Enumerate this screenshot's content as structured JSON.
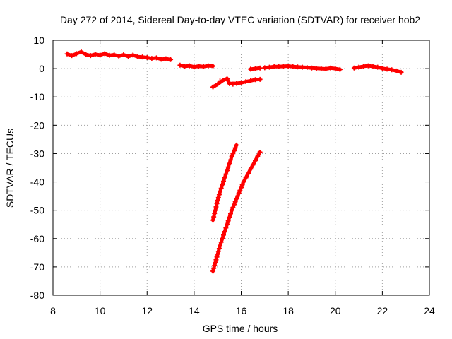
{
  "chart_data": {
    "type": "scatter",
    "title": "Day 272 of 2014, Sidereal Day-to-day VTEC variation (SDTVAR) for receiver hob2",
    "xlabel": "GPS time / hours",
    "ylabel": "SDTVAR / TECUs",
    "xlim": [
      8,
      24
    ],
    "ylim": [
      -80,
      10
    ],
    "xticks": [
      "8",
      "10",
      "12",
      "14",
      "16",
      "18",
      "20",
      "22",
      "24"
    ],
    "yticks": [
      "10",
      "0",
      "-10",
      "-20",
      "-30",
      "-40",
      "-50",
      "-60",
      "-70",
      "-80"
    ],
    "grid": true,
    "marker": "plus",
    "color": "#ff0000",
    "series": [
      {
        "points": [
          [
            8.6,
            5.2
          ],
          [
            8.8,
            4.6
          ],
          [
            9.0,
            5.3
          ],
          [
            9.2,
            5.9
          ],
          [
            9.4,
            5.0
          ],
          [
            9.6,
            4.6
          ],
          [
            9.8,
            5.1
          ],
          [
            10.0,
            4.8
          ],
          [
            10.2,
            5.3
          ],
          [
            10.4,
            4.7
          ],
          [
            10.6,
            4.9
          ],
          [
            10.8,
            4.4
          ],
          [
            11.0,
            4.9
          ],
          [
            11.2,
            4.3
          ],
          [
            11.4,
            4.8
          ],
          [
            11.6,
            4.2
          ],
          [
            11.8,
            4.1
          ],
          [
            12.0,
            3.9
          ],
          [
            12.2,
            3.6
          ],
          [
            12.4,
            3.8
          ],
          [
            12.6,
            3.3
          ],
          [
            12.8,
            3.5
          ],
          [
            13.0,
            3.2
          ]
        ]
      },
      {
        "points": [
          [
            13.4,
            1.2
          ],
          [
            13.6,
            0.8
          ],
          [
            13.8,
            1.0
          ],
          [
            14.0,
            0.6
          ],
          [
            14.2,
            0.9
          ],
          [
            14.4,
            0.7
          ],
          [
            14.6,
            1.0
          ],
          [
            14.8,
            0.9
          ]
        ]
      },
      {
        "points": [
          [
            14.8,
            -6.5
          ],
          [
            15.0,
            -5.5
          ],
          [
            15.2,
            -4.3
          ],
          [
            15.4,
            -3.5
          ],
          [
            15.5,
            -5.3
          ],
          [
            15.8,
            -5.2
          ],
          [
            16.0,
            -5.0
          ],
          [
            16.2,
            -4.6
          ],
          [
            16.4,
            -4.3
          ],
          [
            16.6,
            -3.9
          ],
          [
            16.8,
            -3.8
          ]
        ]
      },
      {
        "points": [
          [
            16.4,
            -0.2
          ],
          [
            16.6,
            0.0
          ],
          [
            16.8,
            0.2
          ]
        ]
      },
      {
        "points": [
          [
            17.0,
            0.3
          ],
          [
            17.2,
            0.5
          ],
          [
            17.4,
            0.7
          ],
          [
            17.6,
            0.7
          ],
          [
            17.8,
            0.8
          ],
          [
            18.0,
            0.9
          ],
          [
            18.2,
            0.7
          ],
          [
            18.4,
            0.6
          ],
          [
            18.6,
            0.5
          ],
          [
            18.8,
            0.4
          ],
          [
            19.0,
            0.2
          ],
          [
            19.2,
            0.1
          ],
          [
            19.4,
            0.0
          ],
          [
            19.6,
            -0.1
          ],
          [
            19.8,
            0.2
          ],
          [
            20.0,
            0.0
          ],
          [
            20.2,
            -0.3
          ]
        ]
      },
      {
        "points": [
          [
            20.8,
            0.2
          ],
          [
            21.0,
            0.5
          ],
          [
            21.2,
            0.8
          ],
          [
            21.4,
            1.0
          ],
          [
            21.6,
            0.8
          ],
          [
            21.8,
            0.5
          ],
          [
            22.0,
            0.1
          ],
          [
            22.2,
            -0.2
          ],
          [
            22.4,
            -0.4
          ],
          [
            22.6,
            -0.8
          ],
          [
            22.8,
            -1.3
          ]
        ]
      },
      {
        "points": [
          [
            14.8,
            -53.5
          ],
          [
            14.9,
            -50.0
          ],
          [
            15.0,
            -46.5
          ],
          [
            15.1,
            -43.5
          ],
          [
            15.2,
            -41.0
          ],
          [
            15.3,
            -38.5
          ],
          [
            15.4,
            -36.0
          ],
          [
            15.5,
            -33.5
          ],
          [
            15.6,
            -31.0
          ],
          [
            15.7,
            -29.0
          ],
          [
            15.8,
            -27.0
          ]
        ]
      },
      {
        "points": [
          [
            14.8,
            -71.5
          ],
          [
            14.9,
            -68.5
          ],
          [
            15.0,
            -65.5
          ],
          [
            15.1,
            -62.5
          ],
          [
            15.2,
            -60.0
          ],
          [
            15.3,
            -57.5
          ],
          [
            15.4,
            -55.0
          ],
          [
            15.5,
            -52.5
          ],
          [
            15.6,
            -50.0
          ],
          [
            15.7,
            -48.0
          ],
          [
            15.8,
            -46.0
          ],
          [
            15.9,
            -44.0
          ],
          [
            16.0,
            -42.0
          ],
          [
            16.1,
            -40.0
          ],
          [
            16.2,
            -38.5
          ],
          [
            16.3,
            -37.0
          ],
          [
            16.4,
            -35.5
          ],
          [
            16.5,
            -34.0
          ],
          [
            16.6,
            -32.5
          ],
          [
            16.7,
            -31.0
          ],
          [
            16.8,
            -29.5
          ]
        ]
      }
    ]
  }
}
